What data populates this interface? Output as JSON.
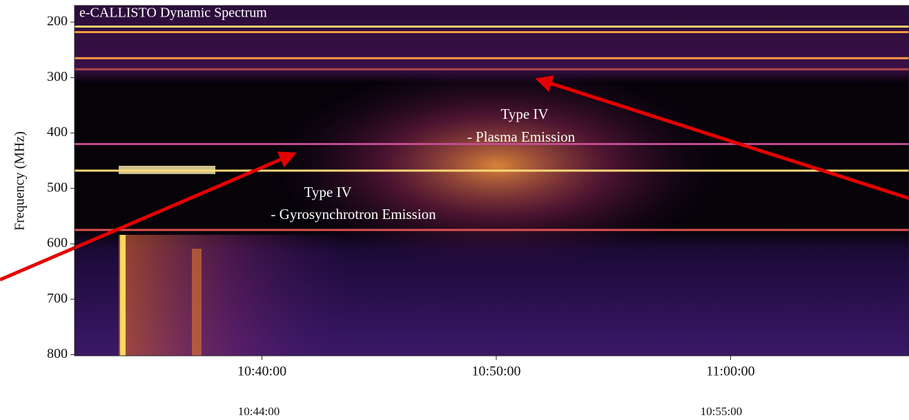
{
  "chart_data": {
    "type": "spectrogram",
    "title": "e-CALLISTO Dynamic Spectrum",
    "y_label": "Frequency (MHz)",
    "ylim": [
      802,
      170
    ],
    "yticks": [
      200,
      300,
      400,
      500,
      600,
      700,
      800
    ],
    "xlim": [
      "10:32:00",
      "11:07:37"
    ],
    "xticks": [
      "10:40:00",
      "10:50:00",
      "11:00:00"
    ],
    "footer_labels": [
      "10:44:00",
      "10:55:00"
    ],
    "bands": [
      {
        "freq": 208,
        "color": "#ffd070"
      },
      {
        "freq": 218,
        "color": "#ff9a40"
      },
      {
        "freq": 265,
        "color": "#ff9a48"
      },
      {
        "freq": 285,
        "color": "#b04848"
      },
      {
        "freq": 420,
        "color": "#c04c90"
      },
      {
        "freq": 468,
        "color": "#ffd878"
      },
      {
        "freq": 575,
        "color": "#e05050"
      }
    ],
    "annotations": [
      {
        "lines": [
          "Type IV",
          "- Plasma Emission"
        ]
      },
      {
        "lines": [
          "Type IV",
          "- Gyrosynchrotron Emission"
        ]
      }
    ]
  }
}
